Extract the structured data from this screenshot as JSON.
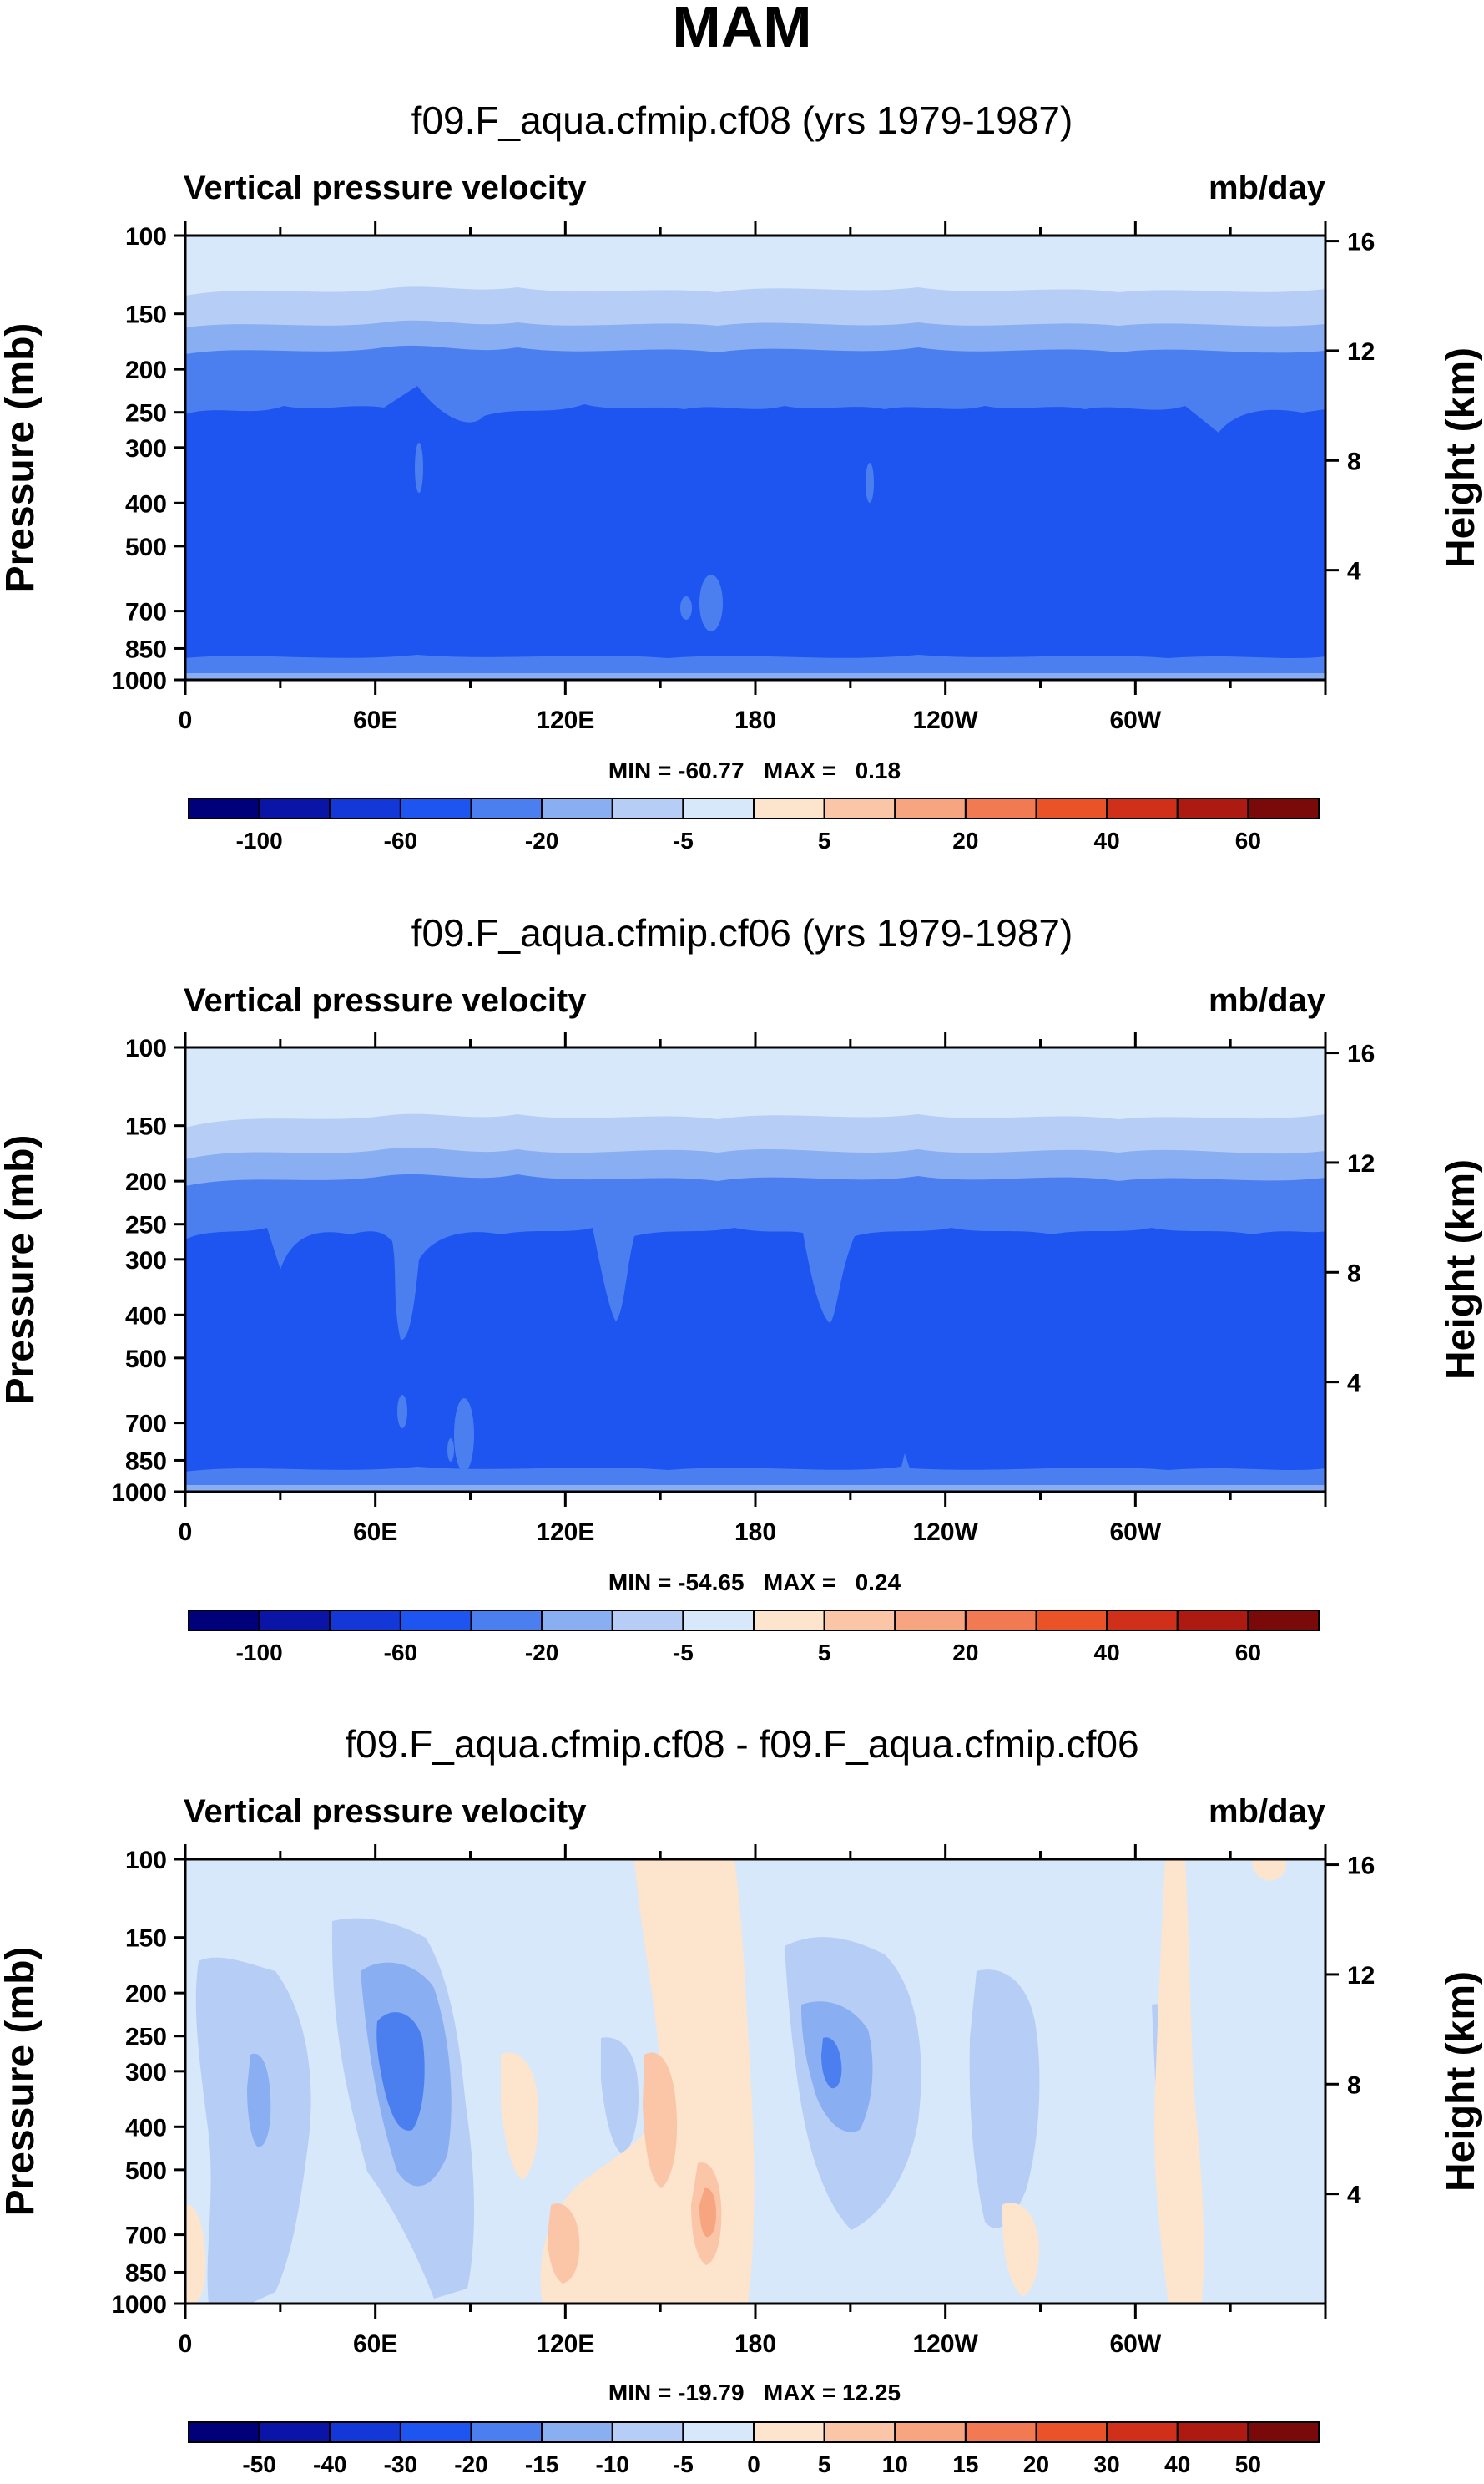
{
  "page_title": "MAM",
  "colors": {
    "c_-100": "#00007a",
    "c_-80": "#0a14a6",
    "c_-60": "#1438d8",
    "c_-40": "#1e55f0",
    "c_-20": "#4b7ff0",
    "c_-10": "#8aaef2",
    "c_-5": "#b6cdf6",
    "c_0": "#d8e8fb",
    "c_p0": "#fde4cd",
    "c_p5": "#fbc6a8",
    "c_p10": "#f7a481",
    "c_p20": "#f27a53",
    "c_p30": "#ea5228",
    "c_p40": "#d0301a",
    "c_p50": "#ad1a12",
    "c_p60": "#7a0a0a"
  },
  "chart_data": [
    {
      "type": "heatmap",
      "title": "f09.F_aqua.cfmip.cf08 (yrs 1979-1987)",
      "left_label": "Vertical pressure velocity",
      "right_label": "mb/day",
      "ylabel": "Pressure (mb)",
      "y2label": "Height (km)",
      "x_ticks": [
        "0",
        "60E",
        "120E",
        "180",
        "120W",
        "60W"
      ],
      "y_ticks": [
        "100",
        "150",
        "200",
        "250",
        "300",
        "400",
        "500",
        "700",
        "850",
        "1000"
      ],
      "y2_ticks": [
        "16",
        "12",
        "8",
        "4"
      ],
      "min_max": "MIN = -60.77   MAX =   0.18",
      "min": -60.77,
      "max": 0.18,
      "colorbar_labels": [
        "-100",
        "-60",
        "-20",
        "-5",
        "5",
        "20",
        "40",
        "60"
      ]
    },
    {
      "type": "heatmap",
      "title": "f09.F_aqua.cfmip.cf06 (yrs 1979-1987)",
      "left_label": "Vertical pressure velocity",
      "right_label": "mb/day",
      "ylabel": "Pressure (mb)",
      "y2label": "Height (km)",
      "x_ticks": [
        "0",
        "60E",
        "120E",
        "180",
        "120W",
        "60W"
      ],
      "y_ticks": [
        "100",
        "150",
        "200",
        "250",
        "300",
        "400",
        "500",
        "700",
        "850",
        "1000"
      ],
      "y2_ticks": [
        "16",
        "12",
        "8",
        "4"
      ],
      "min_max": "MIN = -54.65   MAX =   0.24",
      "min": -54.65,
      "max": 0.24,
      "colorbar_labels": [
        "-100",
        "-60",
        "-20",
        "-5",
        "5",
        "20",
        "40",
        "60"
      ]
    },
    {
      "type": "heatmap",
      "title": "f09.F_aqua.cfmip.cf08 - f09.F_aqua.cfmip.cf06",
      "left_label": "Vertical pressure velocity",
      "right_label": "mb/day",
      "ylabel": "Pressure (mb)",
      "y2label": "Height (km)",
      "x_ticks": [
        "0",
        "60E",
        "120E",
        "180",
        "120W",
        "60W"
      ],
      "y_ticks": [
        "100",
        "150",
        "200",
        "250",
        "300",
        "400",
        "500",
        "700",
        "850",
        "1000"
      ],
      "y2_ticks": [
        "16",
        "12",
        "8",
        "4"
      ],
      "min_max": "MIN = -19.79   MAX = 12.25",
      "min": -19.79,
      "max": 12.25,
      "colorbar_labels": [
        "-50",
        "-40",
        "-30",
        "-20",
        "-15",
        "-10",
        "-5",
        "0",
        "5",
        "10",
        "15",
        "20",
        "30",
        "40",
        "50"
      ]
    }
  ]
}
